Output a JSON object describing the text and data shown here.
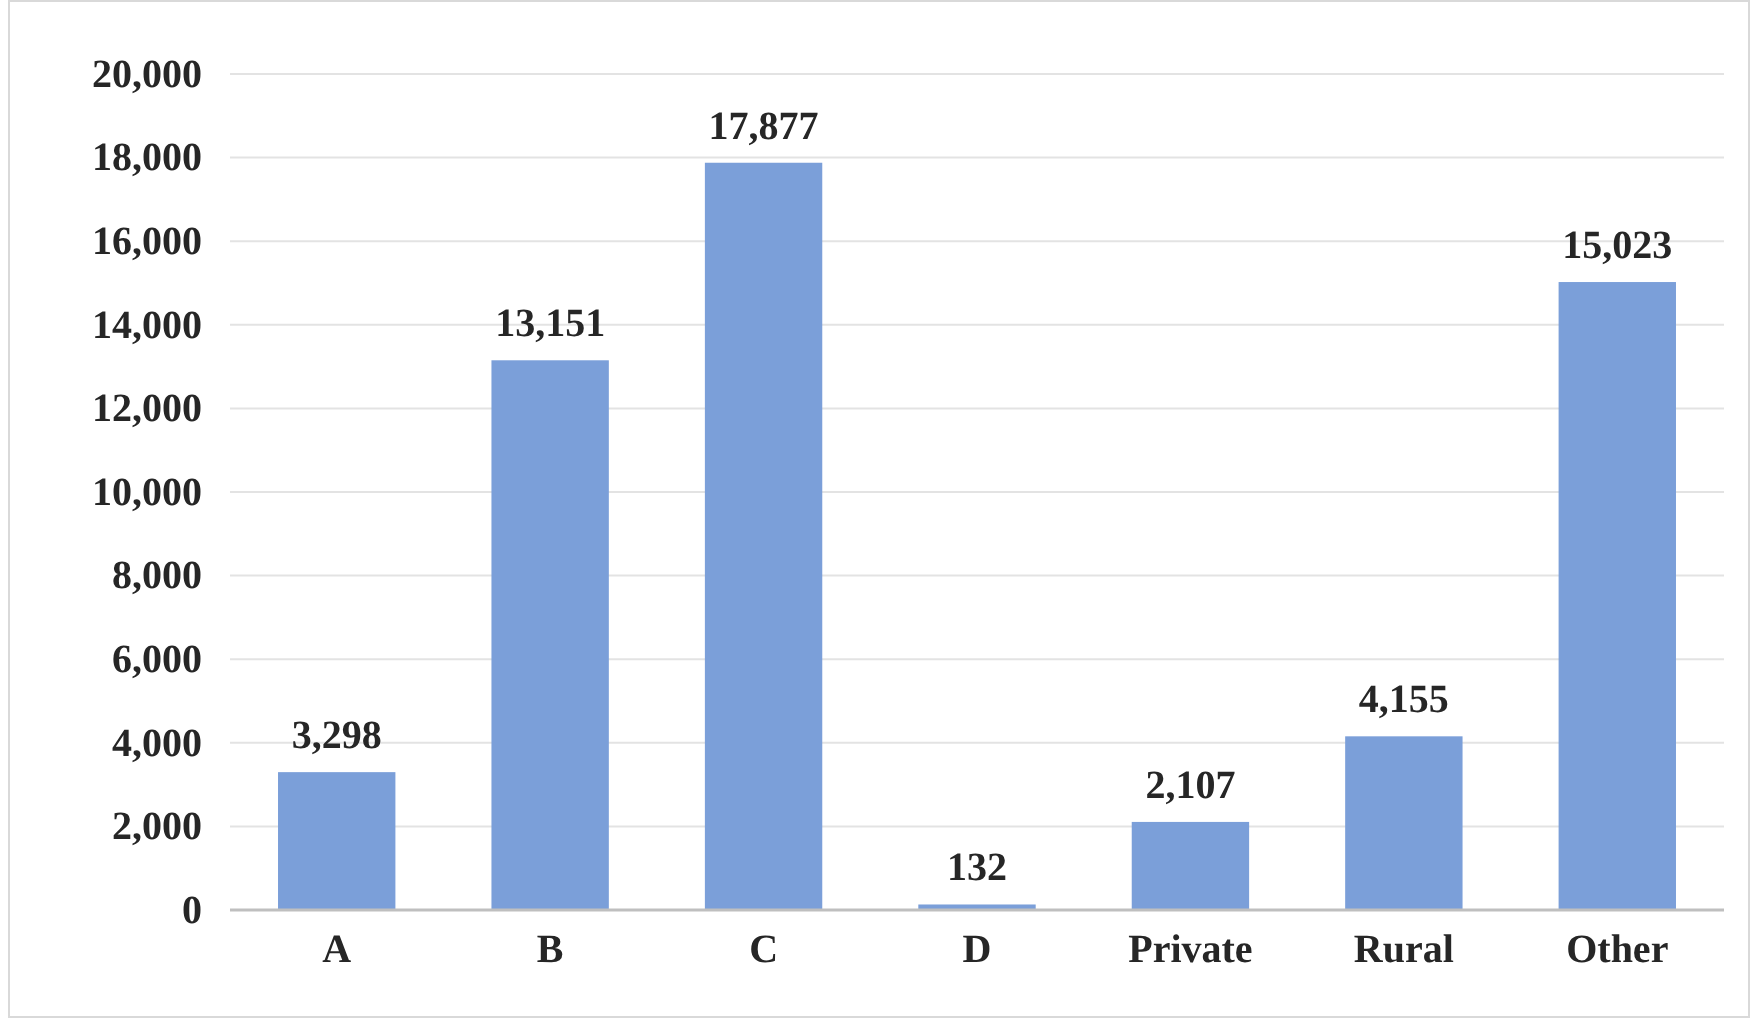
{
  "chart_data": {
    "type": "bar",
    "categories": [
      "A",
      "B",
      "C",
      "D",
      "Private",
      "Rural",
      "Other"
    ],
    "values": [
      3298,
      13151,
      17877,
      132,
      2107,
      4155,
      15023
    ],
    "color": "#7b9fd9",
    "ylim": [
      0,
      20000
    ],
    "yticks": [
      {
        "value": 0,
        "label": "0"
      },
      {
        "value": 2000,
        "label": "2,000"
      },
      {
        "value": 4000,
        "label": "4,000"
      },
      {
        "value": 6000,
        "label": "6,000"
      },
      {
        "value": 8000,
        "label": "8,000"
      },
      {
        "value": 10000,
        "label": "10,000"
      },
      {
        "value": 12000,
        "label": "12,000"
      },
      {
        "value": 14000,
        "label": "14,000"
      },
      {
        "value": 16000,
        "label": "16,000"
      },
      {
        "value": 18000,
        "label": "18,000"
      },
      {
        "value": 20000,
        "label": "20,000"
      }
    ],
    "grid": "y",
    "value_labels": [
      "3,298",
      "13,151",
      "17,877",
      "132",
      "2,107",
      "4,155",
      "15,023"
    ]
  }
}
